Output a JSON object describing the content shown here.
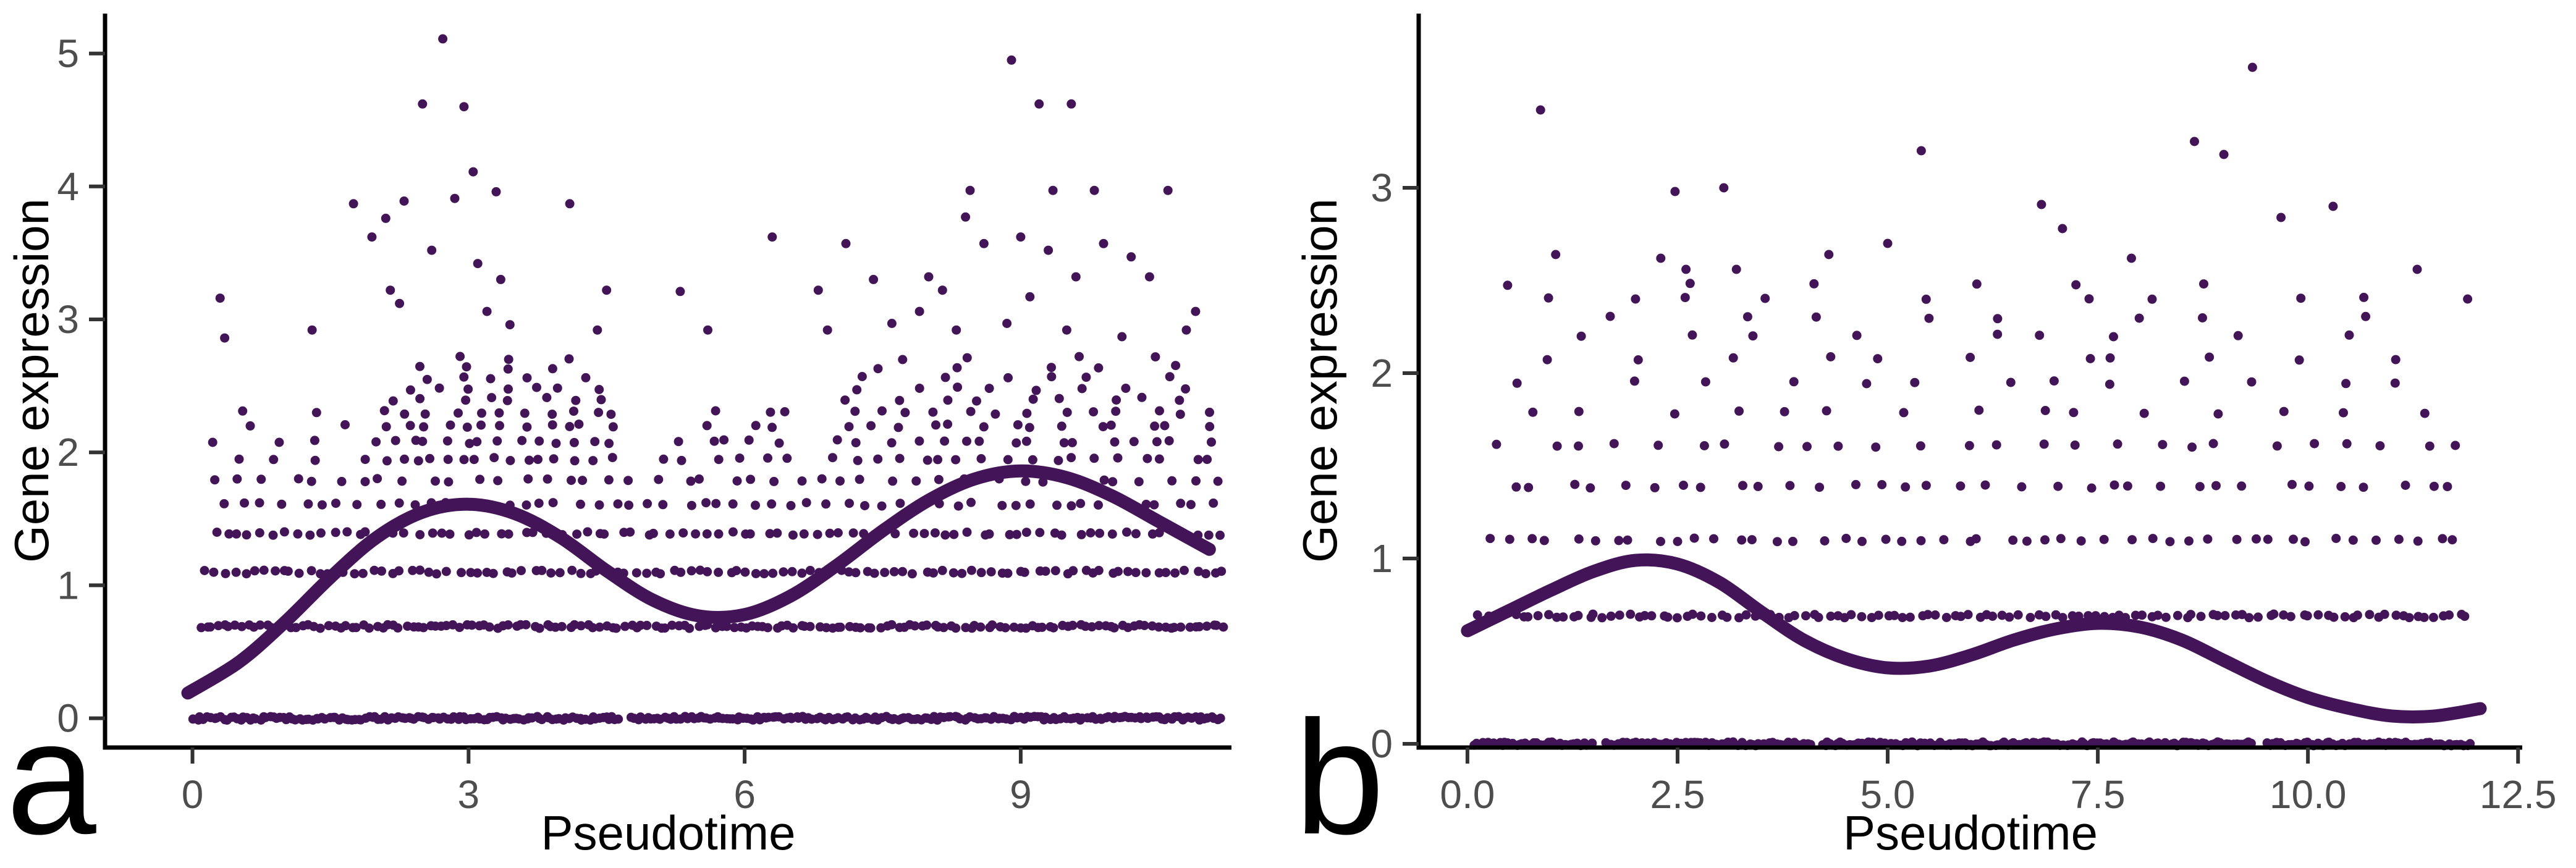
{
  "figure": {
    "background": "#ffffff",
    "colors": {
      "point": "#431558",
      "curve": "#431558",
      "axis_line": "#000000",
      "tick_mark": "#333333",
      "tick_label": "#4d4d4d",
      "axis_title": "#000000",
      "panel_letter": "#000000"
    }
  },
  "chart_data": [
    {
      "type": "scatter",
      "panel_letter": "a",
      "xlabel": "Pseudotime",
      "ylabel": "Gene expression",
      "x_range": [
        -0.95,
        11.29
      ],
      "y_range": [
        -0.22,
        5.3
      ],
      "x_ticks": [
        {
          "value": 0,
          "label": "0"
        },
        {
          "value": 3,
          "label": "3"
        },
        {
          "value": 6,
          "label": "6"
        },
        {
          "value": 9,
          "label": "9"
        }
      ],
      "y_ticks": [
        {
          "value": 0,
          "label": "0"
        },
        {
          "value": 1,
          "label": "1"
        },
        {
          "value": 2,
          "label": "2"
        },
        {
          "value": 3,
          "label": "3"
        },
        {
          "value": 4,
          "label": "4"
        },
        {
          "value": 5,
          "label": "5"
        }
      ],
      "curve": [
        [
          -0.05,
          0.19
        ],
        [
          0.5,
          0.42
        ],
        [
          1,
          0.72
        ],
        [
          1.5,
          1.06
        ],
        [
          2,
          1.36
        ],
        [
          2.5,
          1.55
        ],
        [
          3,
          1.61
        ],
        [
          3.5,
          1.54
        ],
        [
          4,
          1.36
        ],
        [
          4.5,
          1.11
        ],
        [
          5,
          0.89
        ],
        [
          5.5,
          0.77
        ],
        [
          6,
          0.78
        ],
        [
          6.5,
          0.92
        ],
        [
          7,
          1.15
        ],
        [
          7.5,
          1.41
        ],
        [
          8,
          1.64
        ],
        [
          8.5,
          1.8
        ],
        [
          9,
          1.86
        ],
        [
          9.5,
          1.81
        ],
        [
          10,
          1.67
        ],
        [
          10.5,
          1.48
        ],
        [
          11.05,
          1.27
        ]
      ],
      "scatter_bands": [
        {
          "y": 0.0,
          "segments": [
            [
              0.0,
              4.65,
              130
            ],
            [
              4.75,
              11.2,
              180
            ]
          ]
        },
        {
          "y": 0.69,
          "segments": [
            [
              0.05,
              11.25,
              170
            ]
          ]
        },
        {
          "y": 1.1,
          "segments": [
            [
              0.1,
              11.25,
              110
            ]
          ]
        },
        {
          "y": 1.39,
          "segments": [
            [
              0.15,
              11.25,
              85
            ]
          ]
        },
        {
          "y": 1.61,
          "segments": [
            [
              0.3,
              11.2,
              55
            ]
          ]
        },
        {
          "y": 1.79,
          "segments": [
            [
              0.2,
              11.2,
              44
            ]
          ]
        },
        {
          "y": 1.95,
          "segments": [
            [
              0.1,
              1.7,
              3
            ],
            [
              1.8,
              4.6,
              16
            ],
            [
              5.0,
              6.6,
              6
            ],
            [
              6.8,
              11.2,
              18
            ]
          ]
        },
        {
          "y": 2.08,
          "segments": [
            [
              0.1,
              1.8,
              3
            ],
            [
              1.9,
              4.6,
              14
            ],
            [
              5.2,
              6.5,
              5
            ],
            [
              6.9,
              11.1,
              16
            ]
          ]
        },
        {
          "y": 2.2,
          "segments": [
            [
              0.1,
              1.9,
              2
            ],
            [
              2.0,
              4.6,
              12
            ],
            [
              5.5,
              6.5,
              3
            ],
            [
              7.0,
              11.1,
              14
            ]
          ]
        },
        {
          "y": 2.3,
          "segments": [
            [
              0.1,
              1.9,
              2
            ],
            [
              2.0,
              4.7,
              11
            ],
            [
              5.5,
              6.8,
              3
            ],
            [
              7.0,
              11.2,
              13
            ]
          ]
        },
        {
          "y": 2.4,
          "segments": [
            [
              2.1,
              4.5,
              8
            ],
            [
              7.0,
              11.0,
              9
            ]
          ]
        },
        {
          "y": 2.48,
          "segments": [
            [
              2.2,
              4.5,
              7
            ],
            [
              7.1,
              11.0,
              8
            ]
          ]
        },
        {
          "y": 2.56,
          "segments": [
            [
              2.3,
              4.4,
              5
            ],
            [
              7.2,
              10.8,
              6
            ]
          ]
        },
        {
          "y": 2.64,
          "segments": [
            [
              2.4,
              4.3,
              4
            ],
            [
              7.3,
              10.9,
              5
            ]
          ]
        },
        {
          "y": 2.71,
          "segments": [
            [
              2.5,
              4.2,
              3
            ],
            [
              7.5,
              10.7,
              4
            ]
          ]
        }
      ],
      "scatter_points": [
        [
          0.3,
          3.16
        ],
        [
          0.35,
          2.86
        ],
        [
          1.3,
          2.92
        ],
        [
          1.75,
          3.87
        ],
        [
          1.95,
          3.62
        ],
        [
          2.1,
          3.76
        ],
        [
          2.15,
          3.22
        ],
        [
          2.25,
          3.12
        ],
        [
          2.3,
          3.89
        ],
        [
          2.5,
          4.62
        ],
        [
          2.6,
          3.52
        ],
        [
          2.72,
          5.11
        ],
        [
          2.85,
          3.91
        ],
        [
          2.95,
          4.6
        ],
        [
          3.05,
          4.11
        ],
        [
          3.1,
          3.42
        ],
        [
          3.2,
          3.06
        ],
        [
          3.3,
          3.96
        ],
        [
          3.35,
          3.3
        ],
        [
          3.45,
          2.96
        ],
        [
          4.1,
          3.87
        ],
        [
          4.4,
          2.92
        ],
        [
          4.5,
          3.22
        ],
        [
          5.3,
          3.21
        ],
        [
          5.6,
          2.92
        ],
        [
          6.3,
          3.62
        ],
        [
          6.8,
          3.22
        ],
        [
          6.9,
          2.92
        ],
        [
          7.1,
          3.57
        ],
        [
          7.4,
          3.3
        ],
        [
          7.6,
          2.97
        ],
        [
          7.9,
          3.06
        ],
        [
          8.0,
          3.32
        ],
        [
          8.15,
          3.22
        ],
        [
          8.3,
          2.92
        ],
        [
          8.4,
          3.77
        ],
        [
          8.45,
          3.97
        ],
        [
          8.6,
          3.57
        ],
        [
          8.85,
          2.97
        ],
        [
          8.9,
          4.95
        ],
        [
          9.0,
          3.62
        ],
        [
          9.1,
          3.17
        ],
        [
          9.2,
          4.62
        ],
        [
          9.3,
          3.52
        ],
        [
          9.35,
          3.97
        ],
        [
          9.5,
          2.92
        ],
        [
          9.55,
          4.62
        ],
        [
          9.6,
          3.32
        ],
        [
          9.8,
          3.97
        ],
        [
          9.9,
          3.57
        ],
        [
          10.1,
          2.87
        ],
        [
          10.2,
          3.47
        ],
        [
          10.4,
          3.32
        ],
        [
          10.6,
          3.97
        ],
        [
          10.8,
          2.92
        ],
        [
          10.9,
          3.06
        ]
      ]
    },
    {
      "type": "scatter",
      "panel_letter": "b",
      "xlabel": "Pseudotime",
      "ylabel": "Gene expression",
      "x_range": [
        -0.58,
        12.55
      ],
      "y_range": [
        -0.02,
        3.94
      ],
      "x_ticks": [
        {
          "value": 0,
          "label": "0.0"
        },
        {
          "value": 2.5,
          "label": "2.5"
        },
        {
          "value": 5,
          "label": "5.0"
        },
        {
          "value": 7.5,
          "label": "7.5"
        },
        {
          "value": 10,
          "label": "10.0"
        },
        {
          "value": 12.5,
          "label": "12.5"
        }
      ],
      "y_ticks": [
        {
          "value": 0,
          "label": "0"
        },
        {
          "value": 1,
          "label": "1"
        },
        {
          "value": 2,
          "label": "2"
        },
        {
          "value": 3,
          "label": "3"
        }
      ],
      "curve": [
        [
          0,
          0.61
        ],
        [
          0.5,
          0.72
        ],
        [
          1,
          0.83
        ],
        [
          1.5,
          0.93
        ],
        [
          2,
          0.99
        ],
        [
          2.5,
          0.97
        ],
        [
          3,
          0.87
        ],
        [
          3.5,
          0.71
        ],
        [
          4,
          0.56
        ],
        [
          4.5,
          0.46
        ],
        [
          5,
          0.41
        ],
        [
          5.5,
          0.42
        ],
        [
          6,
          0.48
        ],
        [
          6.5,
          0.56
        ],
        [
          7,
          0.62
        ],
        [
          7.5,
          0.65
        ],
        [
          8,
          0.63
        ],
        [
          8.5,
          0.56
        ],
        [
          9,
          0.45
        ],
        [
          9.5,
          0.34
        ],
        [
          10,
          0.25
        ],
        [
          10.5,
          0.19
        ],
        [
          11,
          0.15
        ],
        [
          11.5,
          0.15
        ],
        [
          12.05,
          0.19
        ]
      ],
      "scatter_bands": [
        {
          "y": 0.0,
          "segments": [
            [
              0.05,
              1.5,
              42
            ],
            [
              1.62,
              4.1,
              68
            ],
            [
              4.2,
              9.35,
              140
            ],
            [
              9.5,
              11.95,
              66
            ]
          ]
        },
        {
          "y": 0.69,
          "segments": [
            [
              0.1,
              11.95,
              120
            ]
          ]
        },
        {
          "y": 1.1,
          "segments": [
            [
              0.15,
              11.9,
              48
            ]
          ]
        },
        {
          "y": 1.39,
          "segments": [
            [
              0.3,
              11.9,
              34
            ]
          ]
        },
        {
          "y": 1.61,
          "segments": [
            [
              0.3,
              11.95,
              26
            ]
          ]
        },
        {
          "y": 1.79,
          "segments": [
            [
              0.5,
              11.5,
              15
            ]
          ]
        },
        {
          "y": 1.95,
          "segments": [
            [
              0.5,
              11.8,
              13
            ]
          ]
        },
        {
          "y": 2.08,
          "segments": [
            [
              0.6,
              11.5,
              11
            ]
          ]
        },
        {
          "y": 2.2,
          "segments": [
            [
              1.0,
              10.8,
              9
            ]
          ]
        },
        {
          "y": 2.3,
          "segments": [
            [
              1.3,
              10.9,
              8
            ]
          ]
        },
        {
          "y": 2.4,
          "segments": [
            [
              0.5,
              11.95,
              8
            ]
          ]
        },
        {
          "y": 2.48,
          "segments": [
            [
              0.0,
              9.9,
              6
            ]
          ]
        }
      ],
      "scatter_points": [
        [
          0.87,
          3.42
        ],
        [
          9.34,
          3.65
        ],
        [
          2.47,
          2.98
        ],
        [
          3.05,
          3.0
        ],
        [
          5.4,
          3.2
        ],
        [
          8.65,
          3.25
        ],
        [
          9.0,
          3.18
        ],
        [
          6.83,
          2.91
        ],
        [
          7.08,
          2.78
        ],
        [
          9.68,
          2.84
        ],
        [
          2.3,
          2.62
        ],
        [
          2.6,
          2.56
        ],
        [
          3.2,
          2.56
        ],
        [
          1.05,
          2.64
        ],
        [
          4.3,
          2.64
        ],
        [
          5.0,
          2.7
        ],
        [
          7.9,
          2.62
        ],
        [
          10.3,
          2.9
        ],
        [
          11.3,
          2.56
        ],
        [
          11.9,
          2.4
        ],
        [
          2.0,
          2.4
        ]
      ]
    }
  ]
}
